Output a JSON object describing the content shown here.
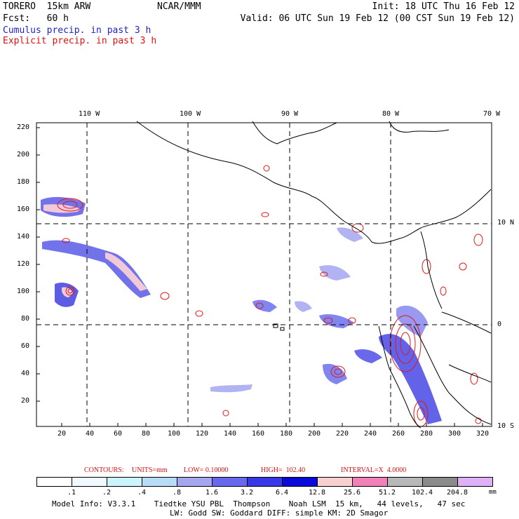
{
  "header": {
    "model": "TORERO  15km ARW",
    "org": "NCAR/MMM",
    "init": "Init: 18 UTC Thu 16 Feb 12",
    "fcst": "Fcst:   60 h",
    "valid": "Valid: 06 UTC Sun 19 Feb 12 (00 CST Sun 19 Feb 12)",
    "legend_cumulus": "Cumulus precip. in past 3 h",
    "legend_explicit": "Explicit precip. in past 3 h"
  },
  "axes": {
    "top_lon": [
      "110 W",
      "100 W",
      "90 W",
      "80 W",
      "70 W"
    ],
    "right_lat": [
      "10 N",
      "0",
      "10 S"
    ],
    "left_y": [
      "220",
      "200",
      "180",
      "160",
      "140",
      "120",
      "100",
      "80",
      "60",
      "40",
      "20"
    ],
    "bottom_x": [
      "20",
      "40",
      "60",
      "80",
      "100",
      "120",
      "140",
      "160",
      "180",
      "200",
      "220",
      "240",
      "260",
      "280",
      "300",
      "320"
    ]
  },
  "contours_line": {
    "label": "CONTOURS:",
    "units": "UNITS=mm",
    "low": "LOW= 0.10000",
    "high": "HIGH=  102.40",
    "interval": "INTERVAL=X  4.0000"
  },
  "colorbar": {
    "colors": [
      "#ffffff",
      "#eefaff",
      "#ccf4ff",
      "#b8dcf8",
      "#a4a6f0",
      "#6868ee",
      "#3838e8",
      "#0a0ad8",
      "#f8d0d0",
      "#f280b8",
      "#b8b8b8",
      "#8a8a8a",
      "#ddb0f8"
    ],
    "labels": [
      ".1",
      ".2",
      ".4",
      ".8",
      "1.6",
      "3.2",
      "6.4",
      "12.8",
      "25.6",
      "51.2",
      "102.4",
      "204.8"
    ],
    "unit": "mm"
  },
  "footer": {
    "line1": "Model Info: V3.3.1    Tiedtke YSU PBL  Thompson    Noah LSM  15 km,   44 levels,   47 sec",
    "line2": "LW: Godd SW: Goddard DIFF: simple KM: 2D Smagor"
  }
}
